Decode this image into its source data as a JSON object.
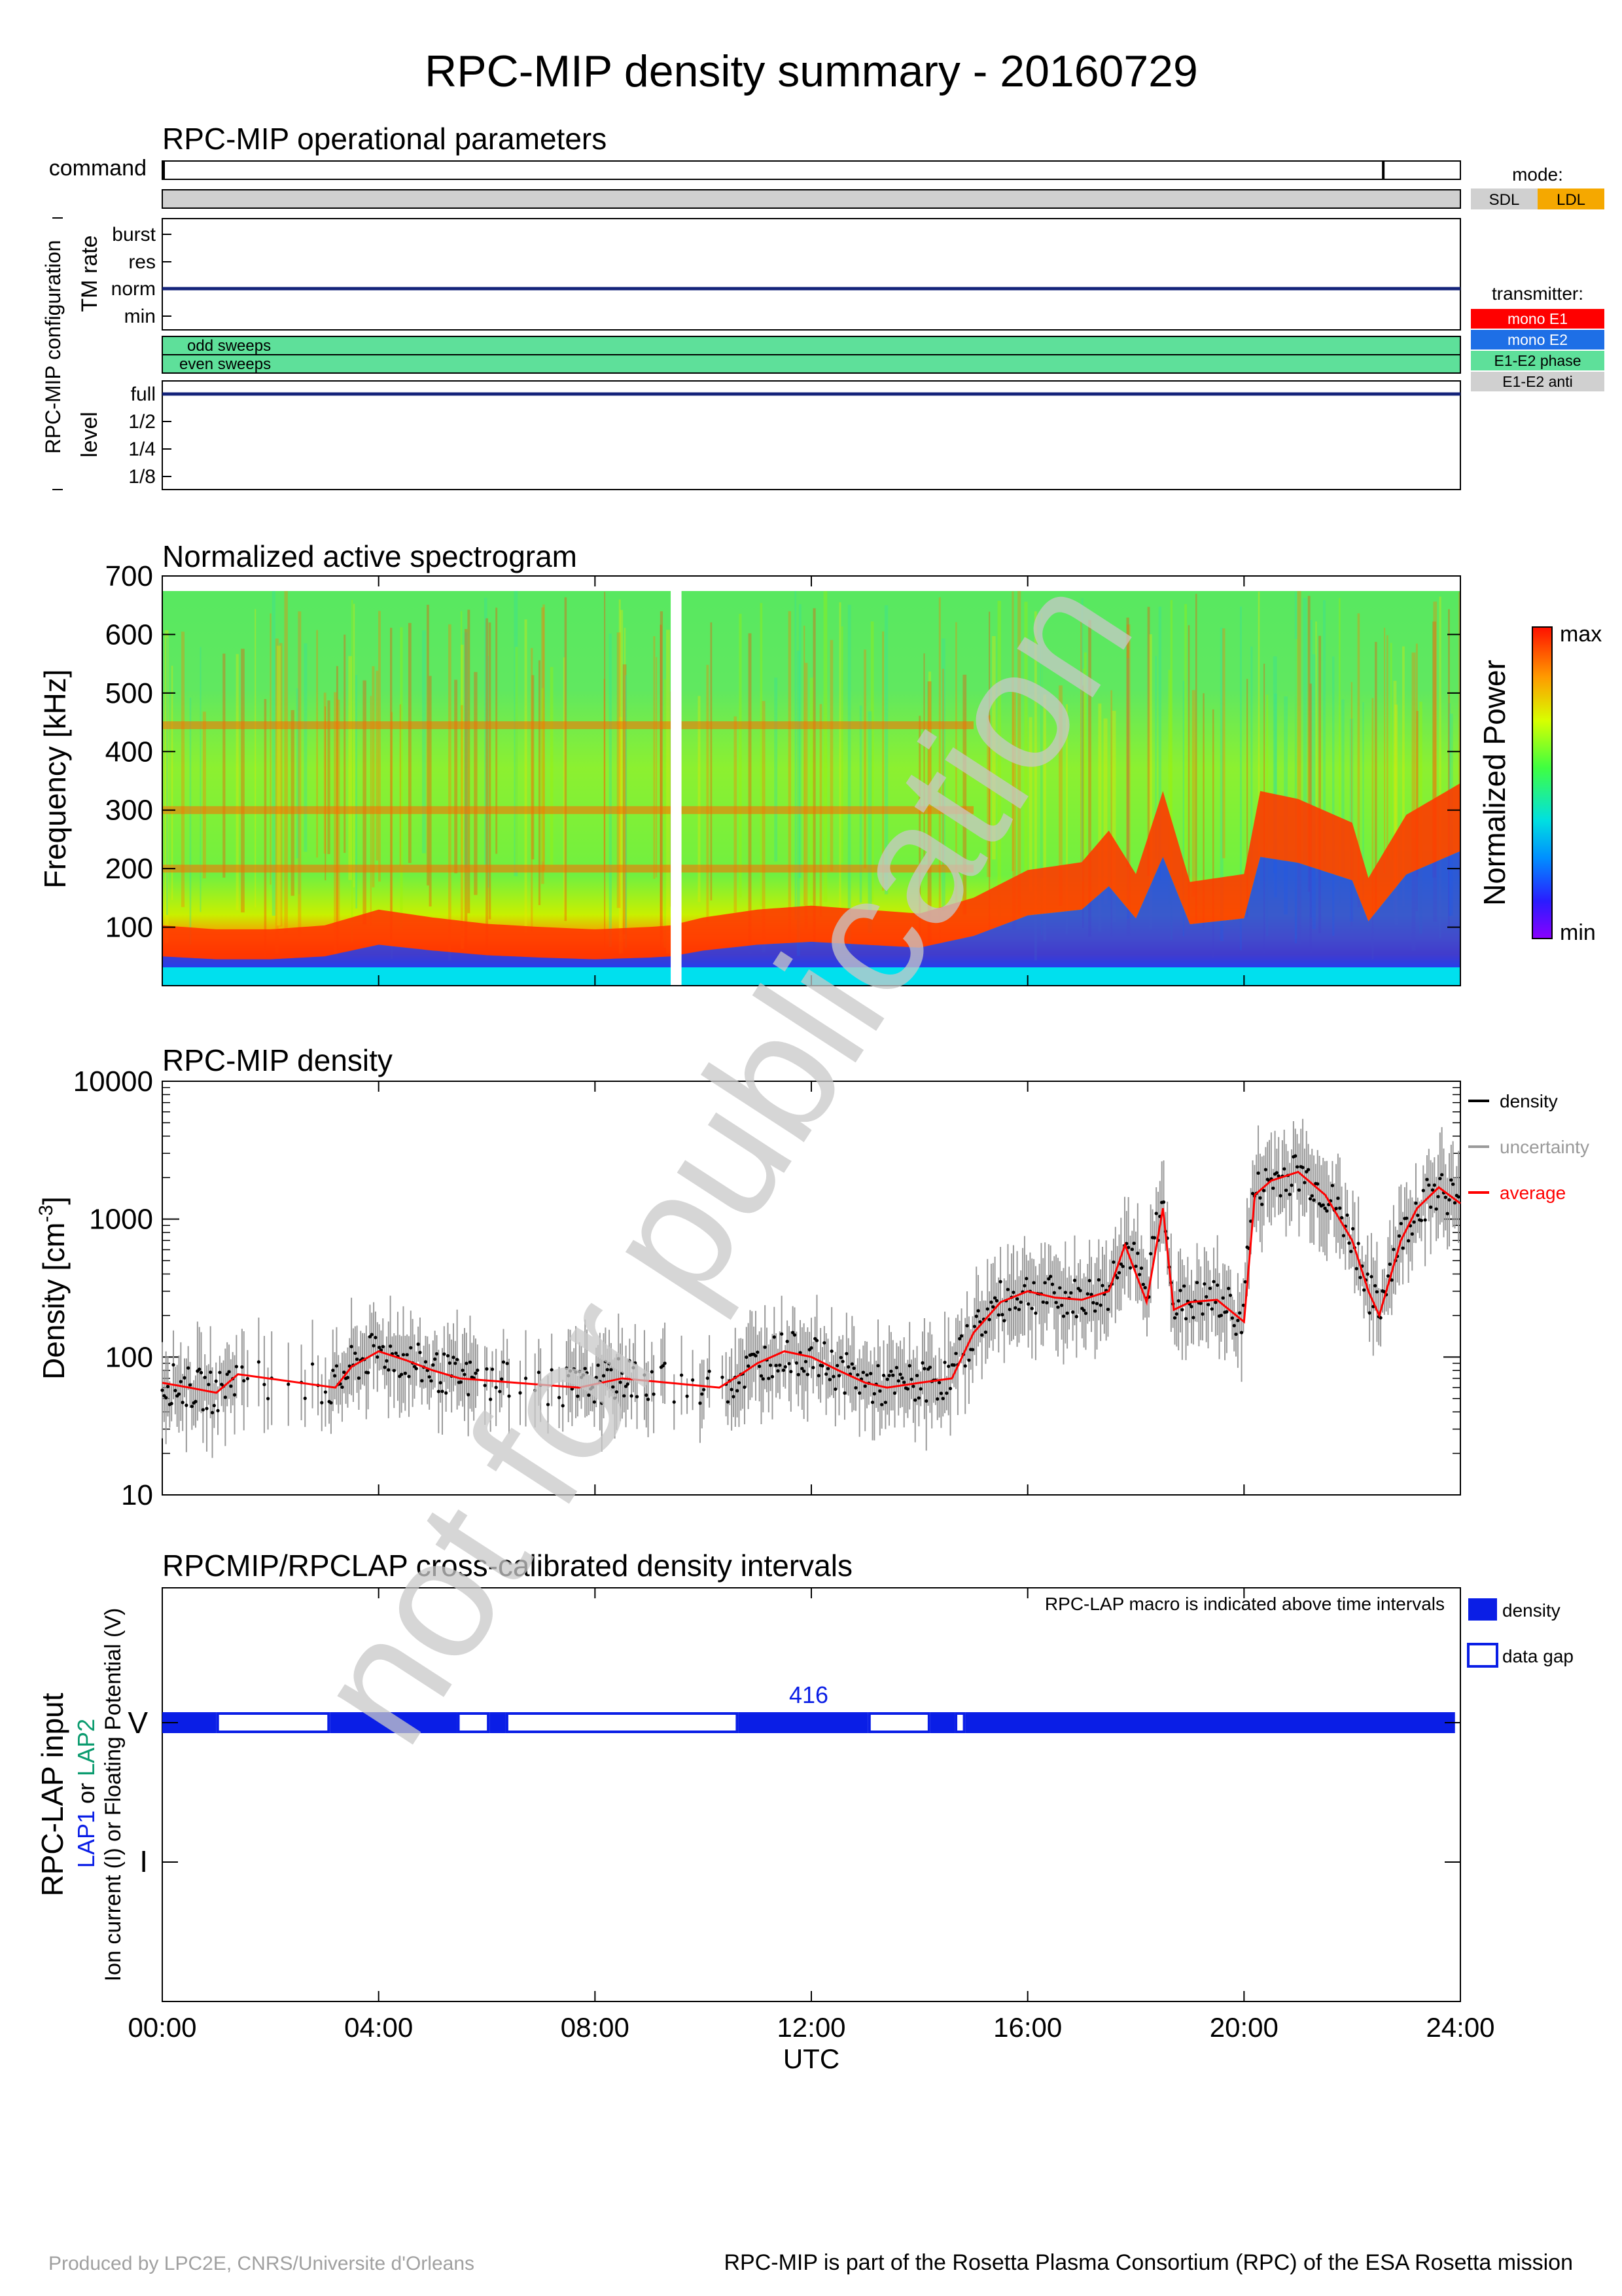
{
  "title": "RPC-MIP density summary - 20160729",
  "watermark": "not for publication",
  "footer": {
    "left": "Produced by LPC2E, CNRS/Universite d'Orleans",
    "right": "RPC-MIP is part of the Rosetta Plasma Consortium (RPC) of the ESA Rosetta mission"
  },
  "time_axis": {
    "ticks": [
      "00:00",
      "04:00",
      "08:00",
      "12:00",
      "16:00",
      "20:00",
      "24:00"
    ],
    "label": "UTC"
  },
  "ops": {
    "title": "RPC-MIP operational parameters",
    "command_label": "command",
    "config_label": "RPC-MIP configuration",
    "tm_label": "TM rate",
    "tm_levels": [
      "burst",
      "res",
      "norm",
      "min"
    ],
    "tm_value": "norm",
    "sweeps": [
      "odd sweeps",
      "even sweeps"
    ],
    "level_label": "level",
    "levels": [
      "full",
      "1/2",
      "1/4",
      "1/8"
    ],
    "level_value": "full",
    "command_marks_hours": [
      0.0,
      22.55
    ],
    "mode_legend": {
      "title": "mode:",
      "items": [
        {
          "label": "SDL",
          "color": "#d0d0d0"
        },
        {
          "label": "LDL",
          "color": "#f5a800"
        }
      ]
    },
    "transmitter_legend": {
      "title": "transmitter:",
      "items": [
        {
          "label": "mono E1",
          "color": "#ff0000"
        },
        {
          "label": "mono E2",
          "color": "#1e6fe6"
        },
        {
          "label": "E1-E2 phase",
          "color": "#5ee09a"
        },
        {
          "label": "E1-E2 anti",
          "color": "#d0d0d0"
        }
      ]
    }
  },
  "spectrogram": {
    "title": "Normalized active spectrogram",
    "ylabel": "Frequency [kHz]",
    "yticks": [
      "100",
      "200",
      "300",
      "400",
      "500",
      "600",
      "700"
    ],
    "colorbar_label": "Normalized Power",
    "colorbar_max": "max",
    "colorbar_min": "min"
  },
  "density": {
    "title": "RPC-MIP density",
    "ylabel": "Density [cm",
    "ylabel_exp": "-3",
    "ylabel_end": "]",
    "yticks": [
      "10",
      "100",
      "1000",
      "10000"
    ],
    "legend": [
      {
        "label": "density",
        "color": "#000000"
      },
      {
        "label": "uncertainty",
        "color": "#9a9a9a"
      },
      {
        "label": "average",
        "color": "#ff0000"
      }
    ]
  },
  "lap": {
    "title": "RPCMIP/RPCLAP cross-calibrated density intervals",
    "note": "RPC-LAP macro is indicated above time intervals",
    "ylabel_main": "RPC-LAP input",
    "ylabel_lap1": "LAP1",
    "ylabel_or": " or ",
    "ylabel_lap2": "LAP2",
    "ylabel_sub": "Ion current (I) or Floating Potential (V)",
    "yticks": [
      "V",
      "I"
    ],
    "macro": "416",
    "legend": [
      {
        "label": "density",
        "fill": true,
        "color": "#0a1ee6"
      },
      {
        "label": "data gap",
        "fill": false,
        "color": "#0a1ee6"
      }
    ]
  },
  "chart_data": [
    {
      "type": "line",
      "title": "Normalized active spectrogram",
      "ylabel": "Frequency [kHz]",
      "xlim_hours": [
        0,
        24
      ],
      "ylim": [
        0,
        700
      ],
      "kind": "heatmap",
      "plasma_line_series": {
        "name": "",
        "x_hours": [
          0,
          1,
          2,
          3,
          3.5,
          4,
          5,
          6,
          7,
          8,
          9,
          9.4,
          10,
          11,
          12,
          13,
          14,
          15,
          16,
          17,
          17.5,
          18,
          18.5,
          19,
          20,
          20.3,
          21,
          22,
          22.3,
          23,
          24
        ],
        "y_khz": [
          60,
          55,
          55,
          60,
          70,
          80,
          70,
          62,
          58,
          55,
          58,
          60,
          70,
          80,
          85,
          80,
          75,
          95,
          130,
          140,
          180,
          125,
          230,
          115,
          125,
          230,
          220,
          190,
          120,
          200,
          240
        ]
      },
      "data_gap_hours": [
        [
          9.4,
          9.6
        ]
      ]
    },
    {
      "type": "scatter",
      "title": "RPC-MIP density",
      "ylabel": "Density [cm-3]",
      "yscale": "log",
      "ylim": [
        10,
        10000
      ],
      "xlim_hours": [
        0,
        24
      ],
      "series": [
        {
          "name": "average",
          "x_hours": [
            0,
            0.5,
            1,
            1.4,
            3.2,
            3.5,
            4,
            4.5,
            5,
            5.5,
            7.7,
            8.5,
            10.3,
            10.7,
            11,
            11.5,
            12,
            12.5,
            13,
            13.4,
            14,
            14.6,
            15,
            15.5,
            16,
            16.5,
            17,
            17.5,
            17.8,
            18.2,
            18.5,
            18.7,
            19,
            19.5,
            20,
            20.2,
            20.5,
            21,
            21.5,
            22,
            22.3,
            22.5,
            22.9,
            23.2,
            23.6,
            24
          ],
          "y_cm3": [
            65,
            60,
            55,
            75,
            60,
            85,
            110,
            95,
            80,
            70,
            60,
            70,
            60,
            75,
            90,
            110,
            100,
            80,
            65,
            60,
            65,
            70,
            150,
            250,
            300,
            270,
            260,
            300,
            650,
            250,
            1200,
            220,
            250,
            260,
            180,
            1500,
            1900,
            2200,
            1500,
            700,
            300,
            200,
            700,
            1200,
            1700,
            1300
          ]
        }
      ]
    },
    {
      "type": "table",
      "title": "RPCMIP/RPCLAP cross-calibrated density intervals",
      "input": "V",
      "macro": "416",
      "density_intervals_hours": [
        [
          0.0,
          1.0
        ],
        [
          3.1,
          5.45
        ],
        [
          6.05,
          6.35
        ],
        [
          10.65,
          13.05
        ],
        [
          14.2,
          14.65
        ],
        [
          14.85,
          23.9
        ]
      ],
      "data_gap_intervals_hours": [
        [
          1.0,
          3.1
        ],
        [
          5.45,
          6.05
        ],
        [
          6.35,
          10.65
        ],
        [
          13.05,
          14.2
        ],
        [
          14.65,
          14.85
        ]
      ]
    }
  ]
}
